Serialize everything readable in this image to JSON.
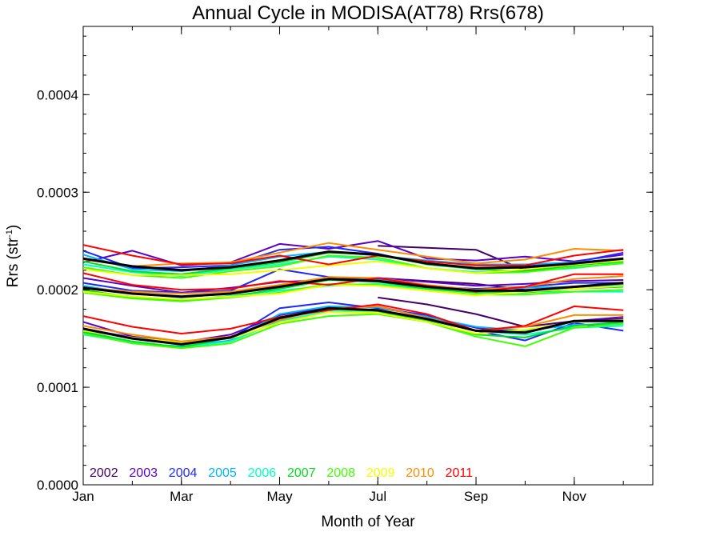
{
  "chart_data": {
    "type": "line",
    "title": "Annual Cycle in MODISA(AT78) Rrs(678)",
    "xlabel": "Month of Year",
    "ylabel": "Rrs (str",
    "ylabel_sup": "-1",
    "ylabel_close": ")",
    "xlim": [
      1,
      12.6
    ],
    "ylim": [
      0.0,
      0.00047
    ],
    "xticks": [
      {
        "x": 1,
        "label": "Jan"
      },
      {
        "x": 3,
        "label": "Mar"
      },
      {
        "x": 5,
        "label": "May"
      },
      {
        "x": 7,
        "label": "Jul"
      },
      {
        "x": 9,
        "label": "Sep"
      },
      {
        "x": 11,
        "label": "Nov"
      }
    ],
    "yticks": [
      {
        "y": 0.0,
        "label": "0.0000"
      },
      {
        "y": 0.0001,
        "label": "0.0001"
      },
      {
        "y": 0.0002,
        "label": "0.0002"
      },
      {
        "y": 0.0003,
        "label": "0.0003"
      },
      {
        "y": 0.0004,
        "label": "0.0004"
      }
    ],
    "x": [
      1,
      2,
      3,
      4,
      5,
      6,
      7,
      8,
      9,
      10,
      11,
      12
    ],
    "legend": [
      {
        "label": "2002",
        "color": "#440066"
      },
      {
        "label": "2003",
        "color": "#5a00c8"
      },
      {
        "label": "2004",
        "color": "#1e28ff"
      },
      {
        "label": "2005",
        "color": "#00b4ff"
      },
      {
        "label": "2006",
        "color": "#00ffc0"
      },
      {
        "label": "2007",
        "color": "#00e020"
      },
      {
        "label": "2008",
        "color": "#40ff00"
      },
      {
        "label": "2009",
        "color": "#f0ff00"
      },
      {
        "label": "2010",
        "color": "#ff8c00"
      },
      {
        "label": "2011",
        "color": "#ff0000"
      }
    ],
    "series": [
      {
        "year": "2002",
        "group": "upper",
        "color": "#440066",
        "values": [
          null,
          null,
          null,
          null,
          null,
          null,
          0.000245,
          0.000243,
          0.000241,
          0.00022,
          0.000225,
          0.000232
        ]
      },
      {
        "year": "2002",
        "group": "middle",
        "color": "#440066",
        "values": [
          null,
          null,
          null,
          null,
          null,
          null,
          0.000212,
          0.000209,
          0.000206,
          0.0002,
          0.000202,
          0.000205
        ]
      },
      {
        "year": "2002",
        "group": "lower",
        "color": "#440066",
        "values": [
          null,
          null,
          null,
          null,
          null,
          null,
          0.000192,
          0.000185,
          0.000175,
          0.000162,
          0.000168,
          0.00017
        ]
      },
      {
        "year": "2003",
        "group": "upper",
        "color": "#5a00c8",
        "values": [
          0.000228,
          0.00024,
          0.000225,
          0.000228,
          0.000247,
          0.000242,
          0.00025,
          0.000232,
          0.00023,
          0.000234,
          0.000229,
          0.000236
        ]
      },
      {
        "year": "2003",
        "group": "middle",
        "color": "#5a00c8",
        "values": [
          0.000212,
          0.000204,
          0.000197,
          0.000202,
          0.000208,
          0.00021,
          0.000212,
          0.000208,
          0.000204,
          0.000206,
          0.000209,
          0.00021
        ]
      },
      {
        "year": "2003",
        "group": "lower",
        "color": "#5a00c8",
        "values": [
          0.000167,
          0.000152,
          0.000146,
          0.000154,
          0.000174,
          0.000182,
          0.000183,
          0.000172,
          0.000161,
          0.000156,
          0.000168,
          0.000172
        ]
      },
      {
        "year": "2004",
        "group": "upper",
        "color": "#1e28ff",
        "values": [
          0.00024,
          0.000222,
          0.000223,
          0.000225,
          0.000241,
          0.000244,
          0.000237,
          0.000226,
          0.000222,
          0.000224,
          0.000228,
          0.000238
        ]
      },
      {
        "year": "2004",
        "group": "middle",
        "color": "#1e28ff",
        "values": [
          0.000207,
          0.000199,
          0.000197,
          0.000199,
          0.000221,
          0.000213,
          0.000211,
          0.000203,
          0.000201,
          0.000203,
          0.000207,
          0.000207
        ]
      },
      {
        "year": "2004",
        "group": "lower",
        "color": "#1e28ff",
        "values": [
          0.00016,
          0.000151,
          0.000146,
          0.00015,
          0.000181,
          0.000187,
          0.000181,
          0.000174,
          0.000158,
          0.000148,
          0.000166,
          0.000158
        ]
      },
      {
        "year": "2005",
        "group": "upper",
        "color": "#00b4ff",
        "values": [
          0.000236,
          0.000221,
          0.000219,
          0.000225,
          0.000234,
          0.000239,
          0.000235,
          0.00023,
          0.000226,
          0.000226,
          0.000228,
          0.000232
        ]
      },
      {
        "year": "2005",
        "group": "middle",
        "color": "#00b4ff",
        "values": [
          0.000204,
          0.000196,
          0.000192,
          0.000196,
          0.000203,
          0.000211,
          0.00021,
          0.000204,
          0.0002,
          0.000202,
          0.000203,
          0.000205
        ]
      },
      {
        "year": "2005",
        "group": "lower",
        "color": "#00b4ff",
        "values": [
          0.000156,
          0.000145,
          0.000142,
          0.000148,
          0.000175,
          0.000183,
          0.000182,
          0.000172,
          0.000162,
          0.000158,
          0.000164,
          0.000165
        ]
      },
      {
        "year": "2006",
        "group": "upper",
        "color": "#00ffc0",
        "values": [
          0.000226,
          0.000218,
          0.000214,
          0.000221,
          0.000226,
          0.000234,
          0.000231,
          0.000222,
          0.000218,
          0.000219,
          0.000222,
          0.000228
        ]
      },
      {
        "year": "2006",
        "group": "middle",
        "color": "#00ffc0",
        "values": [
          0.000199,
          0.000193,
          0.000189,
          0.000194,
          0.000199,
          0.000204,
          0.000206,
          0.000201,
          0.000197,
          0.000198,
          0.000198,
          0.000198
        ]
      },
      {
        "year": "2006",
        "group": "lower",
        "color": "#00ffc0",
        "values": [
          0.000154,
          0.000146,
          0.000141,
          0.000147,
          0.000168,
          0.000178,
          0.000176,
          0.000169,
          0.000158,
          0.000154,
          0.000161,
          0.000163
        ]
      },
      {
        "year": "2007",
        "group": "upper",
        "color": "#00e020",
        "values": [
          0.000229,
          0.000219,
          0.000216,
          0.000222,
          0.000228,
          0.000238,
          0.000236,
          0.000226,
          0.000221,
          0.000219,
          0.000225,
          0.000229
        ]
      },
      {
        "year": "2007",
        "group": "middle",
        "color": "#00e020",
        "values": [
          0.0002,
          0.000192,
          0.000189,
          0.000193,
          0.000201,
          0.00021,
          0.000208,
          0.000201,
          0.000197,
          0.000197,
          0.000201,
          0.000203
        ]
      },
      {
        "year": "2007",
        "group": "lower",
        "color": "#00e020",
        "values": [
          0.000157,
          0.000147,
          0.000141,
          0.000151,
          0.000172,
          0.00018,
          0.000178,
          0.000168,
          0.000154,
          0.000151,
          0.000163,
          0.000167
        ]
      },
      {
        "year": "2008",
        "group": "upper",
        "color": "#40ff00",
        "values": [
          0.000223,
          0.000215,
          0.000212,
          0.000219,
          0.000224,
          0.000235,
          0.000233,
          0.000222,
          0.000217,
          0.000218,
          0.000223,
          0.000227
        ]
      },
      {
        "year": "2008",
        "group": "middle",
        "color": "#40ff00",
        "values": [
          0.000197,
          0.000191,
          0.000188,
          0.000192,
          0.000197,
          0.000206,
          0.000205,
          0.000199,
          0.000195,
          0.000195,
          0.000198,
          0.0002
        ]
      },
      {
        "year": "2008",
        "group": "lower",
        "color": "#40ff00",
        "values": [
          0.000155,
          0.000145,
          0.00014,
          0.000145,
          0.000165,
          0.000173,
          0.000175,
          0.000167,
          0.000152,
          0.000142,
          0.000161,
          0.000165
        ]
      },
      {
        "year": "2009",
        "group": "upper",
        "color": "#f0ff00",
        "values": [
          0.000221,
          0.000215,
          0.000215,
          0.000216,
          0.00022,
          0.000225,
          0.000229,
          0.000222,
          0.000217,
          0.000221,
          0.000226,
          0.00023
        ]
      },
      {
        "year": "2009",
        "group": "middle",
        "color": "#f0ff00",
        "values": [
          0.000198,
          0.000193,
          0.00019,
          0.000193,
          0.000196,
          0.000205,
          0.000204,
          0.000199,
          0.000194,
          0.000198,
          0.000201,
          0.000204
        ]
      },
      {
        "year": "2009",
        "group": "lower",
        "color": "#f0ff00",
        "values": [
          0.000158,
          0.000151,
          0.000146,
          0.00015,
          0.000166,
          0.000177,
          0.000176,
          0.000167,
          0.000155,
          0.000159,
          0.000167,
          0.000169
        ]
      },
      {
        "year": "2010",
        "group": "upper",
        "color": "#ff8c00",
        "values": [
          0.000231,
          0.000224,
          0.000227,
          0.000228,
          0.000238,
          0.000248,
          0.000241,
          0.000234,
          0.000227,
          0.000231,
          0.000242,
          0.00024
        ]
      },
      {
        "year": "2010",
        "group": "middle",
        "color": "#ff8c00",
        "values": [
          0.000202,
          0.000198,
          0.000196,
          0.000198,
          0.000205,
          0.000213,
          0.000212,
          0.000205,
          0.0002,
          0.000203,
          0.000211,
          0.000214
        ]
      },
      {
        "year": "2010",
        "group": "lower",
        "color": "#ff8c00",
        "values": [
          0.000163,
          0.000154,
          0.000147,
          0.000152,
          0.000169,
          0.000181,
          0.000183,
          0.000171,
          0.000158,
          0.000162,
          0.000174,
          0.000174
        ]
      },
      {
        "year": "2011",
        "group": "upper",
        "color": "#ff0000",
        "values": [
          0.000246,
          0.000235,
          0.000226,
          0.000227,
          0.000235,
          0.000226,
          0.000235,
          0.000229,
          0.000225,
          0.000225,
          0.000235,
          0.000241
        ]
      },
      {
        "year": "2011",
        "group": "middle",
        "color": "#ff0000",
        "values": [
          0.000217,
          0.000205,
          0.0002,
          0.000201,
          0.000209,
          0.000205,
          0.000212,
          0.000204,
          0.000198,
          0.000203,
          0.000216,
          0.000216
        ]
      },
      {
        "year": "2011",
        "group": "lower",
        "color": "#ff0000",
        "values": [
          0.000173,
          0.000162,
          0.000155,
          0.00016,
          0.000172,
          0.000179,
          0.000185,
          0.000175,
          0.000158,
          0.000163,
          0.000183,
          0.000179
        ]
      },
      {
        "year": "mean",
        "group": "upper",
        "color": "#000000",
        "values": [
          0.000232,
          0.000224,
          0.00022,
          0.000223,
          0.00023,
          0.000239,
          0.000236,
          0.000227,
          0.000222,
          0.000223,
          0.000227,
          0.000232
        ]
      },
      {
        "year": "mean",
        "group": "middle",
        "color": "#000000",
        "values": [
          0.000202,
          0.000196,
          0.000193,
          0.000196,
          0.000203,
          0.000211,
          0.000209,
          0.000203,
          0.000199,
          0.000199,
          0.000203,
          0.000207
        ]
      },
      {
        "year": "mean",
        "group": "lower",
        "color": "#000000",
        "values": [
          0.00016,
          0.00015,
          0.000144,
          0.000151,
          0.000171,
          0.000181,
          0.000179,
          0.00017,
          0.000158,
          0.000156,
          0.000168,
          0.000168
        ]
      }
    ]
  }
}
